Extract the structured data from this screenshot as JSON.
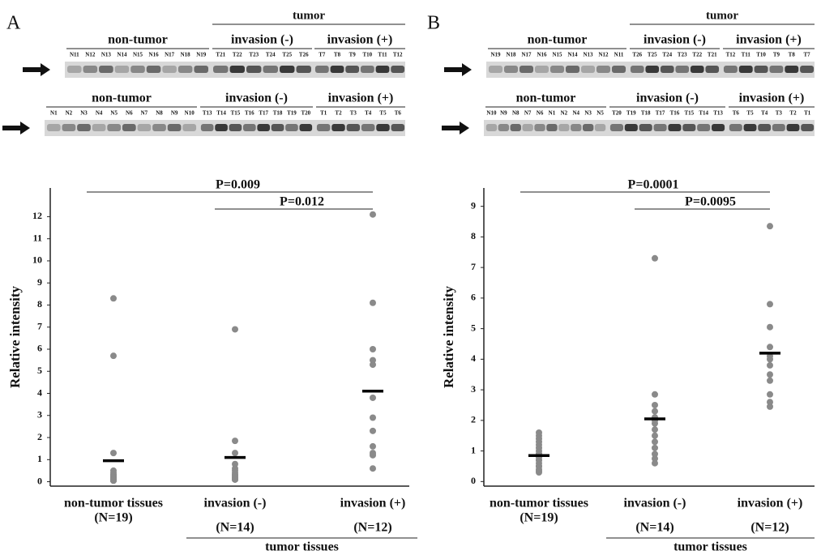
{
  "panels": [
    {
      "letter": "A",
      "blots": [
        {
          "header": "tumor",
          "groups": [
            {
              "label": "non-tumor",
              "lanes": [
                "N11",
                "N12",
                "N13",
                "N14",
                "N15",
                "N16",
                "N17",
                "N18",
                "N19"
              ]
            },
            {
              "label": "invasion (-)",
              "lanes": [
                "T21",
                "T22",
                "T23",
                "T24",
                "T25",
                "T26"
              ]
            },
            {
              "label": "invasion (+)",
              "lanes": [
                "T7",
                "T8",
                "T9",
                "T10",
                "T11",
                "T12"
              ]
            }
          ]
        },
        {
          "groups": [
            {
              "label": "non-tumor",
              "lanes": [
                "N1",
                "N2",
                "N3",
                "N4",
                "N5",
                "N6",
                "N7",
                "N8",
                "N9",
                "N10"
              ]
            },
            {
              "label": "invasion (-)",
              "lanes": [
                "T13",
                "T14",
                "T15",
                "T16",
                "T17",
                "T18",
                "T19",
                "T20"
              ]
            },
            {
              "label": "invasion (+)",
              "lanes": [
                "T1",
                "T2",
                "T3",
                "T4",
                "T5",
                "T6"
              ]
            }
          ]
        }
      ]
    },
    {
      "letter": "B",
      "blots": [
        {
          "header": "tumor",
          "groups": [
            {
              "label": "non-tumor",
              "lanes": [
                "N19",
                "N18",
                "N17",
                "N16",
                "N15",
                "N14",
                "N13",
                "N12",
                "N11"
              ]
            },
            {
              "label": "invasion (-)",
              "lanes": [
                "T26",
                "T25",
                "T24",
                "T23",
                "T22",
                "T21"
              ]
            },
            {
              "label": "invasion (+)",
              "lanes": [
                "T12",
                "T11",
                "T10",
                "T9",
                "T8",
                "T7"
              ]
            }
          ]
        },
        {
          "groups": [
            {
              "label": "non-tumor",
              "lanes": [
                "N10",
                "N9",
                "N8",
                "N7",
                "N6",
                "N1",
                "N2",
                "N4",
                "N3",
                "N5"
              ]
            },
            {
              "label": "invasion (-)",
              "lanes": [
                "T20",
                "T19",
                "T18",
                "T17",
                "T16",
                "T15",
                "T14",
                "T13"
              ]
            },
            {
              "label": "invasion (+)",
              "lanes": [
                "T6",
                "T5",
                "T4",
                "T3",
                "T2",
                "T1"
              ]
            }
          ]
        }
      ]
    }
  ],
  "chart_data": [
    {
      "type": "strip",
      "y_label": "Relative intensity",
      "categories": [
        "non-tumor tissues",
        "invasion (-)",
        "invasion (+)"
      ],
      "n_labels": [
        "(N=19)",
        "(N=14)",
        "(N=12)"
      ],
      "group": {
        "label": "tumor tissues",
        "categories": [
          1,
          2
        ]
      },
      "ylim": [
        -0.2,
        13.3
      ],
      "yticks": [
        0,
        1,
        2,
        3,
        4,
        5,
        6,
        7,
        8,
        9,
        10,
        11,
        12
      ],
      "point_color": "#8a8a8a",
      "mean_color": "#000000",
      "points": [
        [
          8.3,
          5.7,
          1.3,
          0.5,
          0.4,
          0.3,
          0.3,
          0.2,
          0.2,
          0.2,
          0.1,
          0.1,
          0.1,
          0.1,
          0.05,
          0.05,
          0.05,
          0.05,
          0.05
        ],
        [
          6.9,
          1.85,
          1.3,
          0.8,
          0.6,
          0.5,
          0.4,
          0.3,
          0.3,
          0.2,
          0.2,
          0.1,
          0.1,
          0.1
        ],
        [
          12.1,
          8.1,
          6.0,
          5.5,
          5.3,
          3.8,
          2.9,
          2.3,
          1.6,
          1.3,
          1.2,
          0.6
        ]
      ],
      "means": [
        0.95,
        1.1,
        4.1
      ],
      "comparisons": [
        {
          "label": "P=0.009",
          "from": 0,
          "to": 2
        },
        {
          "label": "P=0.012",
          "from": 1,
          "to": 2
        }
      ]
    },
    {
      "type": "strip",
      "y_label": "Relative intensity",
      "categories": [
        "non-tumor tissues",
        "invasion (-)",
        "invasion (+)"
      ],
      "n_labels": [
        "(N=19)",
        "(N=14)",
        "(N=12)"
      ],
      "group": {
        "label": "tumor tissues",
        "categories": [
          1,
          2
        ]
      },
      "ylim": [
        -0.15,
        9.6
      ],
      "yticks": [
        0,
        1,
        2,
        3,
        4,
        5,
        6,
        7,
        8,
        9
      ],
      "point_color": "#8a8a8a",
      "mean_color": "#000000",
      "points": [
        [
          1.6,
          1.5,
          1.4,
          1.3,
          1.2,
          1.1,
          1.0,
          0.9,
          0.9,
          0.8,
          0.8,
          0.7,
          0.7,
          0.6,
          0.5,
          0.5,
          0.4,
          0.35,
          0.3
        ],
        [
          7.3,
          2.85,
          2.5,
          2.3,
          2.1,
          2.0,
          1.9,
          1.7,
          1.5,
          1.3,
          1.1,
          0.9,
          0.75,
          0.6
        ],
        [
          8.35,
          5.8,
          5.05,
          4.4,
          4.1,
          4.0,
          3.8,
          3.5,
          3.3,
          2.85,
          2.6,
          2.45
        ]
      ],
      "means": [
        0.85,
        2.05,
        4.2
      ],
      "comparisons": [
        {
          "label": "P=0.0001",
          "from": 0,
          "to": 2
        },
        {
          "label": "P=0.0095",
          "from": 1,
          "to": 2
        }
      ]
    }
  ]
}
